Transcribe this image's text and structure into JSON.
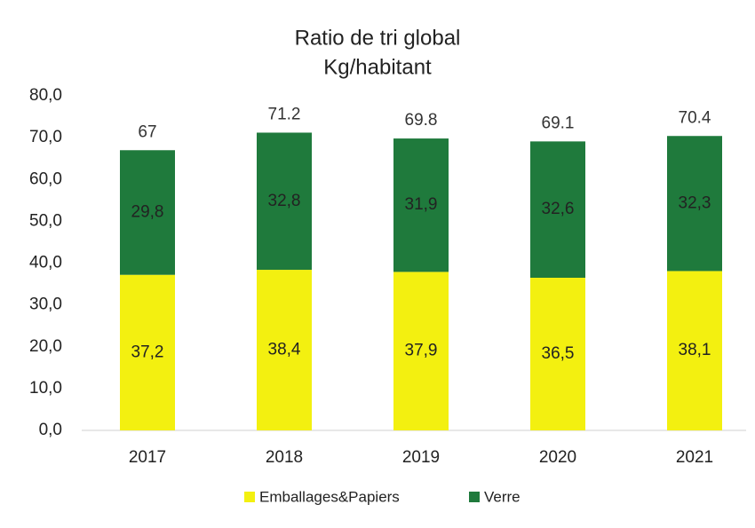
{
  "chart_data": {
    "type": "stacked_bar",
    "title": "Ratio de tri global",
    "subtitle": "Kg/habitant",
    "categories": [
      "2017",
      "2018",
      "2019",
      "2020",
      "2021"
    ],
    "series": [
      {
        "name": "Emballages&Papiers",
        "color": "#f3f010",
        "values": [
          37.2,
          38.4,
          37.9,
          36.5,
          38.1
        ],
        "value_labels": [
          "37,2",
          "38,4",
          "37,9",
          "36,5",
          "38,1"
        ]
      },
      {
        "name": "Verre",
        "color": "#1f7a3c",
        "values": [
          29.8,
          32.8,
          31.9,
          32.6,
          32.3
        ],
        "value_labels": [
          "29,8",
          "32,8",
          "31,9",
          "32,6",
          "32,3"
        ]
      }
    ],
    "totals": [
      67,
      71.2,
      69.8,
      69.1,
      70.4
    ],
    "ylim": [
      0,
      80
    ],
    "yticks": [
      {
        "value": 0,
        "label": "0,0"
      },
      {
        "value": 10,
        "label": "10,0"
      },
      {
        "value": 20,
        "label": "20,0"
      },
      {
        "value": 30,
        "label": "30,0"
      },
      {
        "value": 40,
        "label": "40,0"
      },
      {
        "value": 50,
        "label": "50,0"
      },
      {
        "value": 60,
        "label": "60,0"
      },
      {
        "value": 70,
        "label": "70,0"
      },
      {
        "value": 80,
        "label": "80,0"
      }
    ],
    "grid": false,
    "legend": "bottom"
  }
}
